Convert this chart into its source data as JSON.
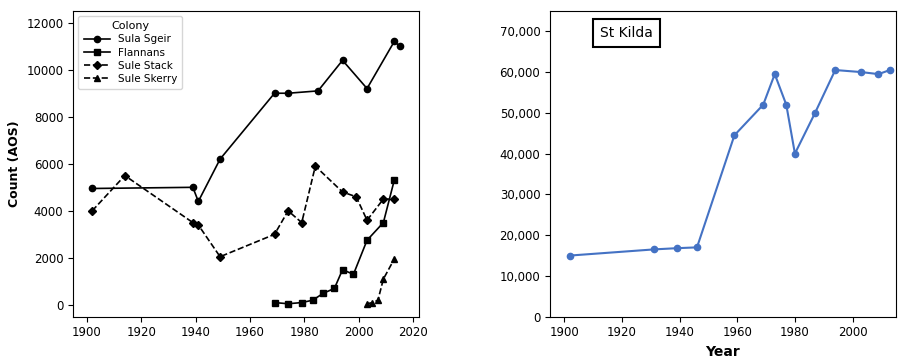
{
  "left": {
    "ylabel": "Count (AOS)",
    "xlim": [
      1895,
      2022
    ],
    "ylim": [
      -500,
      12500
    ],
    "yticks": [
      0,
      2000,
      4000,
      6000,
      8000,
      10000,
      12000
    ],
    "xticks": [
      1900,
      1920,
      1940,
      1960,
      1980,
      2000,
      2020
    ],
    "series": {
      "Sula Sgeir": {
        "x": [
          1902,
          1939,
          1941,
          1949,
          1969,
          1974,
          1985,
          1994,
          2003,
          2013,
          2015
        ],
        "y": [
          4950,
          5000,
          4400,
          6200,
          9000,
          9000,
          9100,
          10400,
          9200,
          11200,
          11000
        ],
        "linestyle": "-",
        "marker": "o"
      },
      "Flannans": {
        "x": [
          1969,
          1974,
          1979,
          1983,
          1987,
          1991,
          1994,
          1998,
          2003,
          2009,
          2013
        ],
        "y": [
          100,
          50,
          100,
          200,
          500,
          700,
          1500,
          1300,
          2750,
          3500,
          5300
        ],
        "linestyle": "-",
        "marker": "s"
      },
      "Sule Stack": {
        "x": [
          1902,
          1914,
          1939,
          1941,
          1949,
          1969,
          1974,
          1979,
          1984,
          1994,
          1999,
          2003,
          2009,
          2013
        ],
        "y": [
          4000,
          5500,
          3500,
          3400,
          2050,
          3000,
          4000,
          3500,
          5900,
          4800,
          4600,
          3600,
          4500,
          4500
        ],
        "linestyle": "--",
        "marker": "D"
      },
      "Sule Skerry": {
        "x": [
          2003,
          2005,
          2007,
          2009,
          2013
        ],
        "y": [
          50,
          100,
          200,
          1100,
          1950
        ],
        "linestyle": "--",
        "marker": "^"
      }
    },
    "legend_title": "Colony"
  },
  "right": {
    "title": "St Kilda",
    "xlabel": "Year",
    "xlim": [
      1895,
      2015
    ],
    "ylim": [
      0,
      75000
    ],
    "yticks": [
      0,
      10000,
      20000,
      30000,
      40000,
      50000,
      60000,
      70000
    ],
    "xticks": [
      1900,
      1920,
      1940,
      1960,
      1980,
      2000
    ],
    "color": "#4472C4",
    "series": {
      "St Kilda": {
        "x": [
          1902,
          1931,
          1939,
          1946,
          1959,
          1969,
          1973,
          1977,
          1980,
          1987,
          1994,
          2003,
          2009,
          2013
        ],
        "y": [
          15000,
          16500,
          16800,
          17000,
          44500,
          52000,
          59500,
          52000,
          40000,
          50000,
          60500,
          60000,
          59500,
          60500
        ]
      }
    }
  }
}
